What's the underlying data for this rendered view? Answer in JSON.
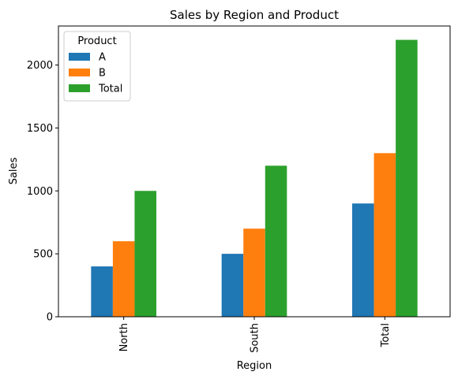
{
  "chart_data": {
    "type": "bar",
    "title": "Sales by Region and Product",
    "xlabel": "Region",
    "ylabel": "Sales",
    "categories": [
      "North",
      "South",
      "Total"
    ],
    "series": [
      {
        "name": "A",
        "values": [
          400,
          500,
          900
        ],
        "color": "#1f77b4"
      },
      {
        "name": "B",
        "values": [
          600,
          700,
          1300
        ],
        "color": "#ff7f0e"
      },
      {
        "name": "Total",
        "values": [
          1000,
          1200,
          2200
        ],
        "color": "#2ca02c"
      }
    ],
    "ylim": [
      0,
      2310
    ],
    "yticks": [
      0,
      500,
      1000,
      1500,
      2000
    ],
    "grid": false,
    "legend": {
      "title": "Product",
      "placement": "top-left"
    }
  }
}
